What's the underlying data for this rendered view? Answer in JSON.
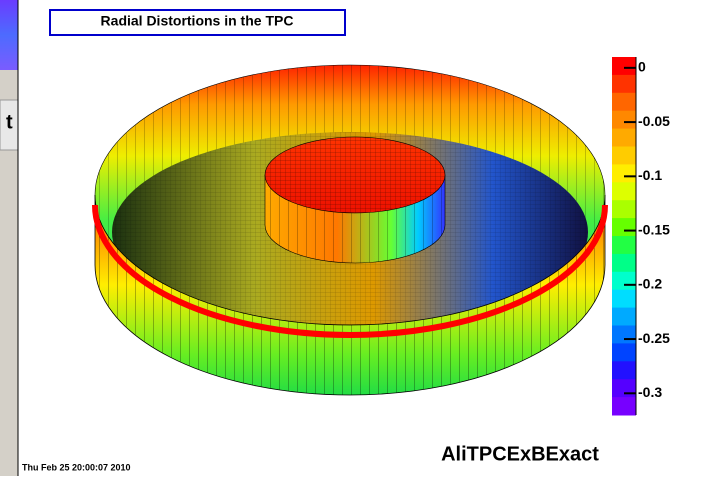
{
  "background_window": {
    "text": "t"
  },
  "chart_data": {
    "type": "surface",
    "title": "Radial Distortions in the TPC",
    "annotation": "AliTPCExBExact",
    "timestamp": "Thu Feb 25 20:00:07 2010",
    "zlim": [
      -0.32,
      0.01
    ],
    "zticks": [
      0,
      -0.05,
      -0.1,
      -0.15,
      -0.2,
      -0.25,
      -0.3
    ],
    "palette": [
      "#ff0000",
      "#ff3300",
      "#ff6600",
      "#ff8800",
      "#ffaa00",
      "#ffcc00",
      "#ffee00",
      "#ddff00",
      "#aaff00",
      "#66ff00",
      "#22ff44",
      "#00ff88",
      "#00ffcc",
      "#00ddff",
      "#00aaff",
      "#0077ff",
      "#0044ff",
      "#2211ff",
      "#5500ff",
      "#7700ff"
    ]
  }
}
